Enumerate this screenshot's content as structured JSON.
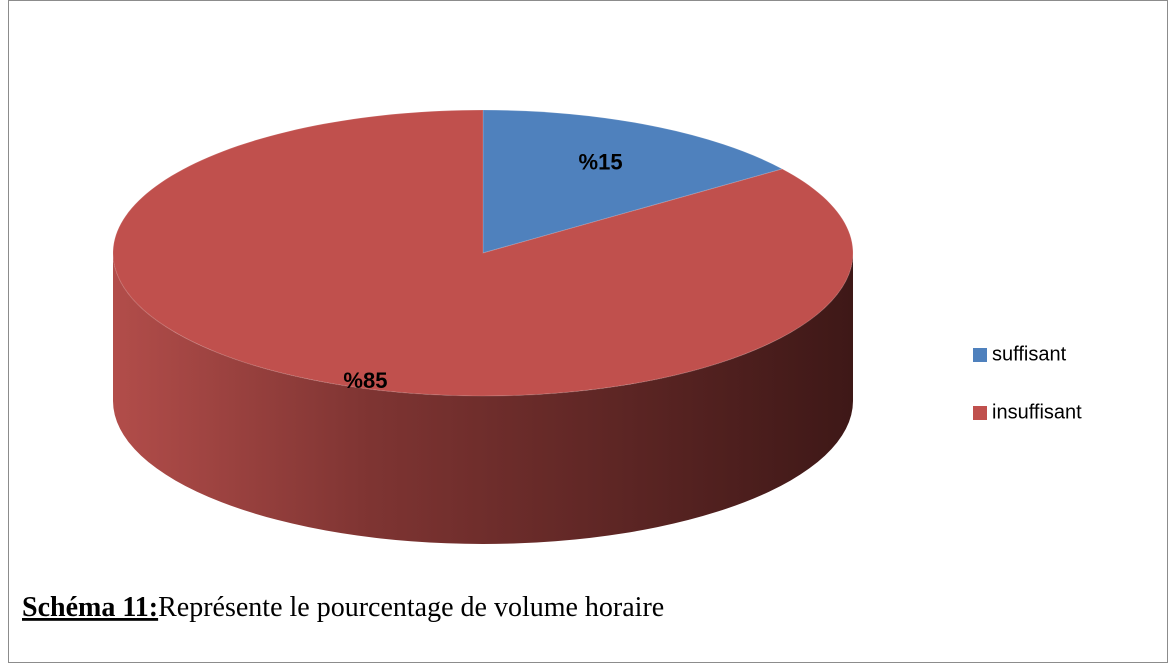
{
  "chart_data": {
    "type": "pie",
    "categories": [
      "suffisant",
      "insuffisant"
    ],
    "values": [
      15,
      85
    ],
    "value_labels": [
      "%15",
      "%85"
    ],
    "colors": [
      "#4f81bd",
      "#c0504d"
    ],
    "legend": "right",
    "caption": {
      "label": "Schéma  11:",
      "text": "Représente le pourcentage de volume horaire"
    }
  }
}
